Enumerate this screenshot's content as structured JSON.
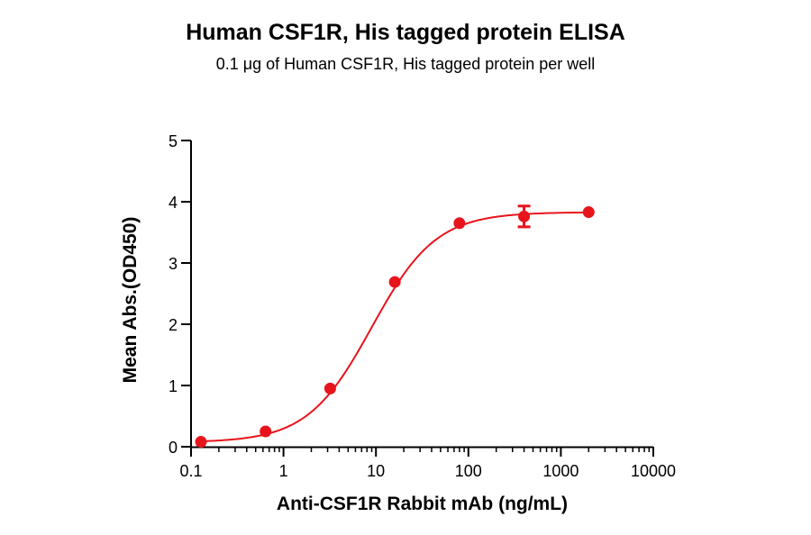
{
  "chart_data": {
    "type": "scatter",
    "title": "Human CSF1R, His tagged protein ELISA",
    "subtitle": "0.1 μg of Human CSF1R, His tagged protein per well",
    "xlabel": "Anti-CSF1R Rabbit mAb (ng/mL)",
    "ylabel": "Mean Abs.(OD450)",
    "x_scale": "log",
    "xlim": [
      0.1,
      10000
    ],
    "ylim": [
      0,
      5
    ],
    "x_ticks": [
      "0.1",
      "1",
      "10",
      "100",
      "1000",
      "10000"
    ],
    "x_tick_values": [
      0.1,
      1,
      10,
      100,
      1000,
      10000
    ],
    "y_ticks": [
      "0",
      "1",
      "2",
      "3",
      "4",
      "5"
    ],
    "y_tick_values": [
      0,
      1,
      2,
      3,
      4,
      5
    ],
    "grid": false,
    "color": "#e8141b",
    "series": [
      {
        "points": [
          {
            "x": 0.128,
            "y": 0.08
          },
          {
            "x": 0.64,
            "y": 0.25
          },
          {
            "x": 3.2,
            "y": 0.95
          },
          {
            "x": 16,
            "y": 2.69
          },
          {
            "x": 80,
            "y": 3.65
          },
          {
            "x": 400,
            "y": 3.76,
            "error": 0.17
          },
          {
            "x": 2000,
            "y": 3.83
          }
        ],
        "fit": {
          "bottom": 0.07,
          "top": 3.83,
          "ec50": 9.0,
          "hill": 1.25
        }
      }
    ]
  }
}
